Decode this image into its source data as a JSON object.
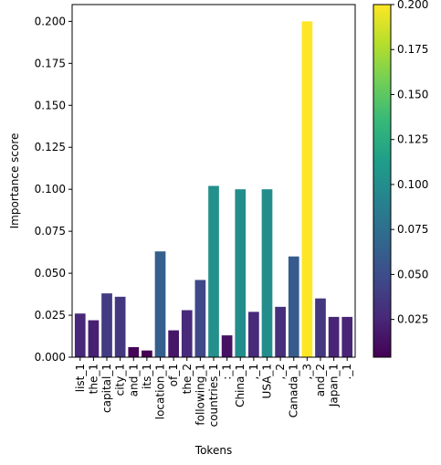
{
  "chart_data": {
    "type": "bar",
    "xlabel": "Tokens",
    "ylabel": "Importance score",
    "ylim": [
      0,
      0.21
    ],
    "yticks": [
      "0.000",
      "0.025",
      "0.050",
      "0.075",
      "0.100",
      "0.125",
      "0.150",
      "0.175",
      "0.200"
    ],
    "colormap": "viridis",
    "colorbar": {
      "range": [
        0.004,
        0.2
      ],
      "ticks": [
        "0.025",
        "0.050",
        "0.075",
        "0.100",
        "0.125",
        "0.150",
        "0.175",
        "0.200"
      ]
    },
    "categories": [
      "list_1",
      "the_1",
      "capital_1",
      "city_1",
      "and_1",
      "its_1",
      "location_1",
      "of_1",
      "the_2",
      "following_1",
      "countries_1",
      ":_1",
      "China_1",
      ",_1",
      "USA_1",
      ",_2",
      "Canada_1",
      ",_3",
      "and_2",
      "Japan_1",
      "._1"
    ],
    "values": [
      0.026,
      0.022,
      0.038,
      0.036,
      0.006,
      0.004,
      0.063,
      0.016,
      0.028,
      0.046,
      0.102,
      0.013,
      0.1,
      0.027,
      0.1,
      0.03,
      0.06,
      0.2,
      0.035,
      0.024,
      0.024
    ]
  }
}
